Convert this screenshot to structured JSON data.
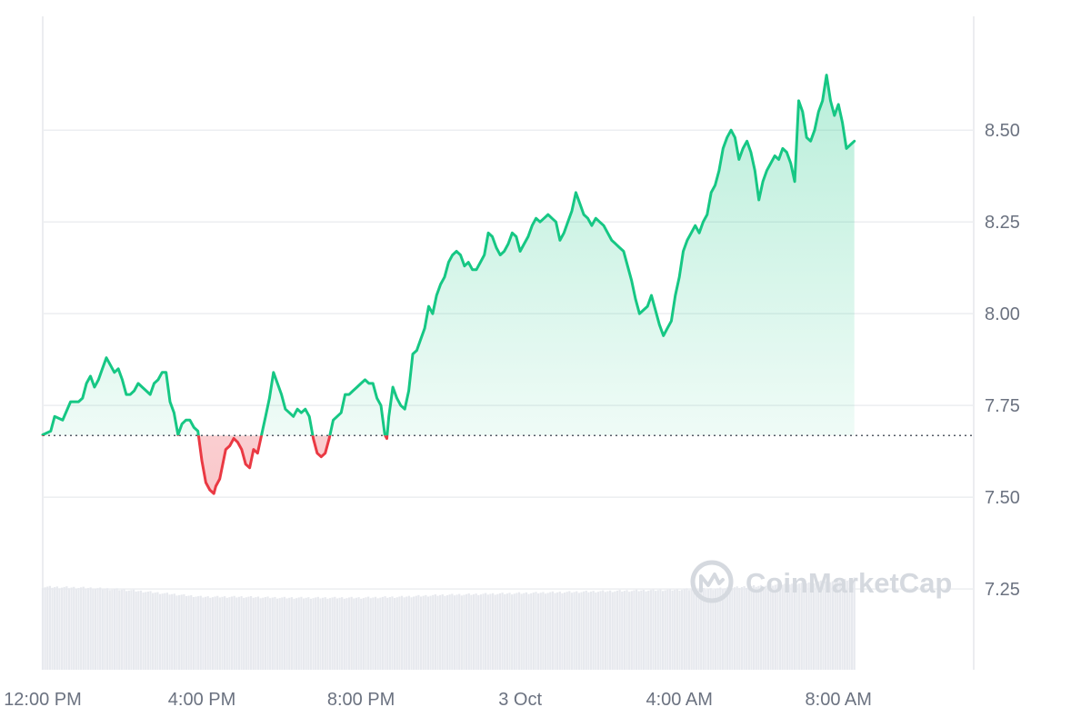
{
  "chart_data": {
    "type": "area",
    "watermark": "CoinMarketCap",
    "baseline": 7.668,
    "colors": {
      "up": "#16c784",
      "down": "#ea3943",
      "up_fill": "#16c784",
      "down_fill": "#ea3943",
      "volume": "#e7e9ee",
      "grid": "#eceef1",
      "text": "#6b7280"
    },
    "y_ticks": [
      "7.25",
      "7.50",
      "7.75",
      "8.00",
      "8.25",
      "8.50"
    ],
    "x_ticks": [
      {
        "label": "12:00 PM",
        "t": 0
      },
      {
        "label": "4:00 PM",
        "t": 4
      },
      {
        "label": "8:00 PM",
        "t": 8
      },
      {
        "label": "3 Oct",
        "t": 12
      },
      {
        "label": "4:00 AM",
        "t": 16
      },
      {
        "label": "8:00 AM",
        "t": 20
      }
    ],
    "x_range": [
      0,
      23.4
    ],
    "y_range": [
      7.03,
      8.81
    ],
    "price": [
      [
        0.0,
        7.67
      ],
      [
        0.2,
        7.68
      ],
      [
        0.3,
        7.72
      ],
      [
        0.5,
        7.71
      ],
      [
        0.7,
        7.76
      ],
      [
        0.8,
        7.76
      ],
      [
        0.9,
        7.76
      ],
      [
        1.0,
        7.77
      ],
      [
        1.1,
        7.81
      ],
      [
        1.2,
        7.83
      ],
      [
        1.3,
        7.8
      ],
      [
        1.4,
        7.82
      ],
      [
        1.5,
        7.85
      ],
      [
        1.6,
        7.88
      ],
      [
        1.7,
        7.86
      ],
      [
        1.8,
        7.84
      ],
      [
        1.9,
        7.85
      ],
      [
        2.0,
        7.82
      ],
      [
        2.1,
        7.78
      ],
      [
        2.2,
        7.78
      ],
      [
        2.3,
        7.79
      ],
      [
        2.4,
        7.81
      ],
      [
        2.5,
        7.8
      ],
      [
        2.6,
        7.79
      ],
      [
        2.7,
        7.78
      ],
      [
        2.8,
        7.81
      ],
      [
        2.9,
        7.82
      ],
      [
        3.0,
        7.84
      ],
      [
        3.1,
        7.84
      ],
      [
        3.2,
        7.76
      ],
      [
        3.3,
        7.73
      ],
      [
        3.4,
        7.67
      ],
      [
        3.5,
        7.7
      ],
      [
        3.6,
        7.71
      ],
      [
        3.7,
        7.71
      ],
      [
        3.8,
        7.69
      ],
      [
        3.9,
        7.68
      ],
      [
        4.0,
        7.6
      ],
      [
        4.1,
        7.54
      ],
      [
        4.2,
        7.52
      ],
      [
        4.3,
        7.51
      ],
      [
        4.35,
        7.53
      ],
      [
        4.45,
        7.55
      ],
      [
        4.6,
        7.63
      ],
      [
        4.7,
        7.64
      ],
      [
        4.8,
        7.66
      ],
      [
        4.9,
        7.65
      ],
      [
        5.0,
        7.63
      ],
      [
        5.1,
        7.59
      ],
      [
        5.2,
        7.58
      ],
      [
        5.3,
        7.63
      ],
      [
        5.4,
        7.62
      ],
      [
        5.5,
        7.67
      ],
      [
        5.6,
        7.72
      ],
      [
        5.7,
        7.77
      ],
      [
        5.8,
        7.84
      ],
      [
        5.9,
        7.81
      ],
      [
        6.0,
        7.78
      ],
      [
        6.1,
        7.74
      ],
      [
        6.2,
        7.73
      ],
      [
        6.3,
        7.72
      ],
      [
        6.4,
        7.74
      ],
      [
        6.5,
        7.73
      ],
      [
        6.6,
        7.74
      ],
      [
        6.7,
        7.72
      ],
      [
        6.8,
        7.66
      ],
      [
        6.9,
        7.62
      ],
      [
        7.0,
        7.61
      ],
      [
        7.1,
        7.62
      ],
      [
        7.2,
        7.66
      ],
      [
        7.3,
        7.71
      ],
      [
        7.4,
        7.72
      ],
      [
        7.5,
        7.73
      ],
      [
        7.6,
        7.78
      ],
      [
        7.7,
        7.78
      ],
      [
        7.8,
        7.79
      ],
      [
        7.9,
        7.8
      ],
      [
        8.0,
        7.81
      ],
      [
        8.1,
        7.82
      ],
      [
        8.2,
        7.81
      ],
      [
        8.3,
        7.81
      ],
      [
        8.4,
        7.77
      ],
      [
        8.5,
        7.75
      ],
      [
        8.6,
        7.67
      ],
      [
        8.65,
        7.66
      ],
      [
        8.7,
        7.72
      ],
      [
        8.8,
        7.8
      ],
      [
        8.9,
        7.77
      ],
      [
        9.0,
        7.75
      ],
      [
        9.1,
        7.74
      ],
      [
        9.2,
        7.79
      ],
      [
        9.3,
        7.89
      ],
      [
        9.4,
        7.9
      ],
      [
        9.5,
        7.93
      ],
      [
        9.6,
        7.96
      ],
      [
        9.7,
        8.02
      ],
      [
        9.8,
        8.0
      ],
      [
        9.9,
        8.05
      ],
      [
        10.0,
        8.08
      ],
      [
        10.1,
        8.1
      ],
      [
        10.2,
        8.14
      ],
      [
        10.3,
        8.16
      ],
      [
        10.4,
        8.17
      ],
      [
        10.5,
        8.16
      ],
      [
        10.6,
        8.13
      ],
      [
        10.7,
        8.14
      ],
      [
        10.8,
        8.12
      ],
      [
        10.9,
        8.12
      ],
      [
        11.0,
        8.14
      ],
      [
        11.1,
        8.16
      ],
      [
        11.2,
        8.22
      ],
      [
        11.3,
        8.21
      ],
      [
        11.4,
        8.18
      ],
      [
        11.5,
        8.16
      ],
      [
        11.6,
        8.17
      ],
      [
        11.7,
        8.19
      ],
      [
        11.8,
        8.22
      ],
      [
        11.9,
        8.21
      ],
      [
        12.0,
        8.17
      ],
      [
        12.1,
        8.19
      ],
      [
        12.2,
        8.21
      ],
      [
        12.3,
        8.24
      ],
      [
        12.4,
        8.26
      ],
      [
        12.5,
        8.25
      ],
      [
        12.6,
        8.26
      ],
      [
        12.7,
        8.27
      ],
      [
        12.8,
        8.26
      ],
      [
        12.9,
        8.25
      ],
      [
        13.0,
        8.2
      ],
      [
        13.1,
        8.22
      ],
      [
        13.2,
        8.25
      ],
      [
        13.3,
        8.28
      ],
      [
        13.4,
        8.33
      ],
      [
        13.5,
        8.3
      ],
      [
        13.6,
        8.27
      ],
      [
        13.7,
        8.26
      ],
      [
        13.8,
        8.24
      ],
      [
        13.9,
        8.26
      ],
      [
        14.0,
        8.25
      ],
      [
        14.1,
        8.24
      ],
      [
        14.2,
        8.22
      ],
      [
        14.3,
        8.2
      ],
      [
        14.4,
        8.19
      ],
      [
        14.5,
        8.18
      ],
      [
        14.6,
        8.17
      ],
      [
        14.7,
        8.13
      ],
      [
        14.8,
        8.09
      ],
      [
        14.9,
        8.04
      ],
      [
        15.0,
        8.0
      ],
      [
        15.1,
        8.01
      ],
      [
        15.2,
        8.02
      ],
      [
        15.3,
        8.05
      ],
      [
        15.4,
        8.01
      ],
      [
        15.5,
        7.97
      ],
      [
        15.6,
        7.94
      ],
      [
        15.7,
        7.96
      ],
      [
        15.8,
        7.98
      ],
      [
        15.9,
        8.05
      ],
      [
        16.0,
        8.1
      ],
      [
        16.1,
        8.17
      ],
      [
        16.2,
        8.2
      ],
      [
        16.3,
        8.22
      ],
      [
        16.4,
        8.24
      ],
      [
        16.5,
        8.22
      ],
      [
        16.6,
        8.25
      ],
      [
        16.7,
        8.27
      ],
      [
        16.8,
        8.33
      ],
      [
        16.9,
        8.35
      ],
      [
        17.0,
        8.39
      ],
      [
        17.1,
        8.45
      ],
      [
        17.2,
        8.48
      ],
      [
        17.3,
        8.5
      ],
      [
        17.4,
        8.48
      ],
      [
        17.5,
        8.42
      ],
      [
        17.6,
        8.45
      ],
      [
        17.7,
        8.47
      ],
      [
        17.8,
        8.44
      ],
      [
        17.9,
        8.39
      ],
      [
        18.0,
        8.31
      ],
      [
        18.1,
        8.36
      ],
      [
        18.2,
        8.39
      ],
      [
        18.3,
        8.41
      ],
      [
        18.4,
        8.43
      ],
      [
        18.5,
        8.42
      ],
      [
        18.6,
        8.45
      ],
      [
        18.7,
        8.44
      ],
      [
        18.8,
        8.41
      ],
      [
        18.9,
        8.36
      ],
      [
        19.0,
        8.58
      ],
      [
        19.1,
        8.55
      ],
      [
        19.2,
        8.48
      ],
      [
        19.3,
        8.47
      ],
      [
        19.4,
        8.5
      ],
      [
        19.5,
        8.55
      ],
      [
        19.6,
        8.58
      ],
      [
        19.7,
        8.65
      ],
      [
        19.8,
        8.58
      ],
      [
        19.9,
        8.54
      ],
      [
        20.0,
        8.57
      ],
      [
        20.1,
        8.52
      ],
      [
        20.2,
        8.45
      ],
      [
        20.3,
        8.46
      ],
      [
        20.4,
        8.47
      ]
    ],
    "volume": [
      [
        0.0,
        0.91
      ],
      [
        1.0,
        0.9
      ],
      [
        2.0,
        0.88
      ],
      [
        2.5,
        0.86
      ],
      [
        3.0,
        0.84
      ],
      [
        4.0,
        0.8
      ],
      [
        5.0,
        0.8
      ],
      [
        6.0,
        0.79
      ],
      [
        7.0,
        0.79
      ],
      [
        8.0,
        0.79
      ],
      [
        9.0,
        0.8
      ],
      [
        10.0,
        0.82
      ],
      [
        11.0,
        0.83
      ],
      [
        12.0,
        0.84
      ],
      [
        13.0,
        0.85
      ],
      [
        14.0,
        0.86
      ],
      [
        15.0,
        0.87
      ],
      [
        16.0,
        0.88
      ],
      [
        17.0,
        0.89
      ],
      [
        18.0,
        0.92
      ],
      [
        19.0,
        0.95
      ],
      [
        20.0,
        0.98
      ],
      [
        20.4,
        1.0
      ]
    ]
  }
}
